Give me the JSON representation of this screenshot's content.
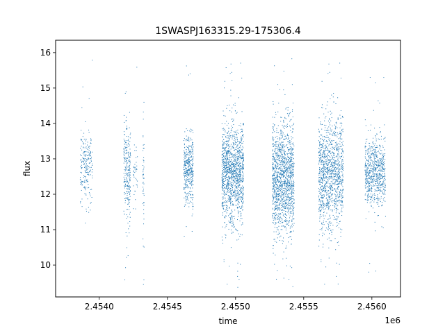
{
  "chart_data": {
    "type": "scatter",
    "title": "1SWASPJ163315.29-175306.4",
    "xlabel": "time",
    "ylabel": "flux",
    "x_offset_label": "1e6",
    "xlim": [
      2.45368,
      2.45621
    ],
    "ylim": [
      9.1,
      16.35
    ],
    "xticks": [
      2.454,
      2.4545,
      2.455,
      2.4555,
      2.456
    ],
    "xtick_labels": [
      "2.4540",
      "2.4545",
      "2.4550",
      "2.4555",
      "2.4560"
    ],
    "yticks": [
      10,
      11,
      12,
      13,
      14,
      15,
      16
    ],
    "ytick_labels": [
      "10",
      "11",
      "12",
      "13",
      "14",
      "15",
      "16"
    ],
    "grid": false,
    "marker_color": "#1f77b4",
    "series": [
      {
        "points_description": "dense clusters of flux measurements within observing seasons",
        "clusters": [
          {
            "x_start": 2.45386,
            "x_end": 2.45395,
            "y_center": 12.8,
            "y_spread": 0.5,
            "count": 220
          },
          {
            "x_start": 2.45418,
            "x_end": 2.45423,
            "y_center": 12.6,
            "y_spread": 0.7,
            "count": 260
          },
          {
            "x_start": 2.45425,
            "x_end": 2.45428,
            "y_center": 12.5,
            "y_spread": 0.5,
            "count": 40
          },
          {
            "x_start": 2.45432,
            "x_end": 2.45433,
            "y_center": 12.3,
            "y_spread": 0.9,
            "count": 50
          },
          {
            "x_start": 2.45462,
            "x_end": 2.45469,
            "y_center": 12.7,
            "y_spread": 0.5,
            "count": 400
          },
          {
            "x_start": 2.4549,
            "x_end": 2.45506,
            "y_center": 12.6,
            "y_spread": 0.7,
            "count": 1300
          },
          {
            "x_start": 2.45527,
            "x_end": 2.45543,
            "y_center": 12.4,
            "y_spread": 0.8,
            "count": 1400
          },
          {
            "x_start": 2.45561,
            "x_end": 2.45579,
            "y_center": 12.6,
            "y_spread": 0.8,
            "count": 1200
          },
          {
            "x_start": 2.45595,
            "x_end": 2.4561,
            "y_center": 12.6,
            "y_spread": 0.5,
            "count": 700
          }
        ]
      }
    ]
  }
}
